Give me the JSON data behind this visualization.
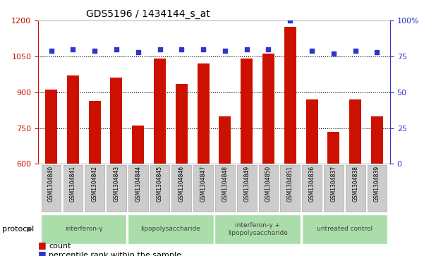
{
  "title": "GDS5196 / 1434144_s_at",
  "samples": [
    "GSM1304840",
    "GSM1304841",
    "GSM1304842",
    "GSM1304843",
    "GSM1304844",
    "GSM1304845",
    "GSM1304846",
    "GSM1304847",
    "GSM1304848",
    "GSM1304849",
    "GSM1304850",
    "GSM1304851",
    "GSM1304836",
    "GSM1304837",
    "GSM1304838",
    "GSM1304839"
  ],
  "counts": [
    910,
    970,
    865,
    960,
    760,
    1040,
    935,
    1020,
    800,
    1040,
    1060,
    1175,
    870,
    735,
    870,
    800
  ],
  "percentiles": [
    79,
    80,
    79,
    80,
    78,
    80,
    80,
    80,
    79,
    80,
    80,
    100,
    79,
    77,
    79,
    78
  ],
  "groups": [
    {
      "label": "interferon-γ",
      "start": 0,
      "end": 4
    },
    {
      "label": "lipopolysaccharide",
      "start": 4,
      "end": 8
    },
    {
      "label": "interferon-γ +\nlipopolysaccharide",
      "start": 8,
      "end": 12
    },
    {
      "label": "untreated control",
      "start": 12,
      "end": 16
    }
  ],
  "group_color": "#aaddaa",
  "ylim_left": [
    600,
    1200
  ],
  "ylim_right": [
    0,
    100
  ],
  "bar_color": "#cc1100",
  "dot_color": "#3333cc",
  "plot_bg": "#ffffff",
  "fig_bg": "#ffffff",
  "sample_cell_color": "#cccccc",
  "sample_cell_edge": "#aaaaaa",
  "title_fontsize": 10,
  "legend_count_label": "count",
  "legend_pct_label": "percentile rank within the sample",
  "protocol_label": "protocol"
}
